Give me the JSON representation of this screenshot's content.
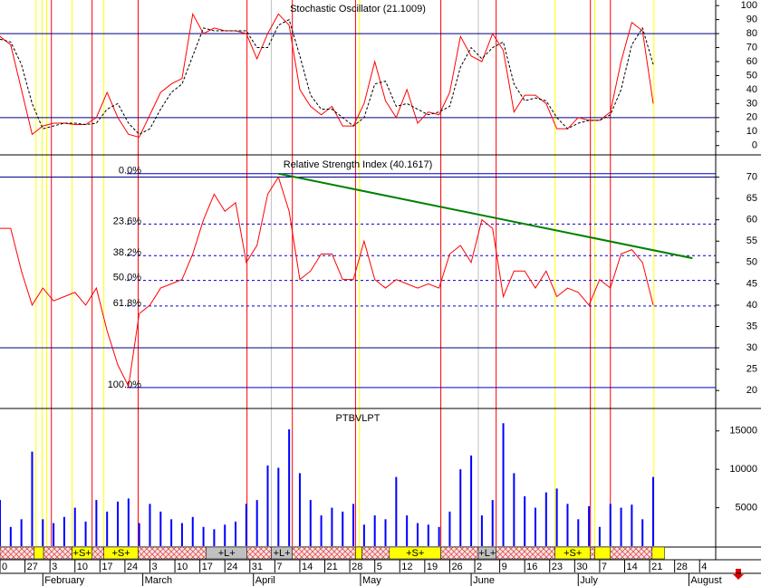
{
  "chart_data": [
    {
      "type": "line",
      "title": "Stochastic Oscillator (21.1009)",
      "x": [
        0,
        3,
        6,
        9,
        12,
        15,
        18,
        21,
        24,
        27,
        30,
        33,
        36,
        39,
        42,
        45,
        48,
        51,
        54,
        57,
        60,
        63,
        66,
        69,
        72,
        75,
        78,
        81,
        84,
        87,
        90,
        93,
        96,
        99,
        102,
        105,
        108,
        111,
        114,
        117,
        120,
        123,
        126,
        129,
        132,
        135,
        138,
        141,
        144,
        147,
        150,
        153,
        156,
        159,
        162,
        165,
        168,
        171,
        174,
        177,
        180,
        183
      ],
      "series": [
        {
          "color": "#ff0000",
          "values": [
            78,
            72,
            40,
            8,
            14,
            16,
            16,
            15,
            15,
            20,
            38,
            20,
            8,
            6,
            22,
            38,
            44,
            48,
            94,
            80,
            84,
            82,
            82,
            80,
            62,
            80,
            94,
            86,
            40,
            28,
            22,
            28,
            14,
            14,
            30,
            60,
            32,
            20,
            40,
            16,
            24,
            22,
            38,
            78,
            64,
            60,
            80,
            68,
            24,
            36,
            36,
            30,
            12,
            12,
            20,
            18,
            18,
            24,
            60,
            88,
            82,
            30
          ]
        },
        {
          "color": "#000000",
          "dashed": true,
          "values": [
            76,
            74,
            58,
            30,
            12,
            14,
            16,
            16,
            15,
            16,
            26,
            30,
            16,
            8,
            12,
            26,
            38,
            44,
            64,
            84,
            82,
            82,
            82,
            82,
            70,
            70,
            86,
            90,
            64,
            36,
            26,
            26,
            20,
            14,
            20,
            44,
            46,
            28,
            30,
            26,
            22,
            24,
            28,
            56,
            70,
            62,
            70,
            74,
            44,
            32,
            34,
            32,
            20,
            12,
            16,
            18,
            18,
            22,
            40,
            72,
            84,
            58
          ]
        }
      ],
      "ylim": [
        -6,
        104
      ],
      "yticks": [
        0,
        10,
        20,
        30,
        40,
        50,
        60,
        70,
        80,
        90,
        100
      ],
      "ref_lines": [
        20,
        80
      ]
    },
    {
      "type": "line",
      "title": "Relative Strength Index (40.1617)",
      "x": [
        0,
        3,
        6,
        9,
        12,
        15,
        18,
        21,
        24,
        27,
        30,
        33,
        36,
        39,
        42,
        45,
        48,
        51,
        54,
        57,
        60,
        63,
        66,
        69,
        72,
        75,
        78,
        81,
        84,
        87,
        90,
        93,
        96,
        99,
        102,
        105,
        108,
        111,
        114,
        117,
        120,
        123,
        126,
        129,
        132,
        135,
        138,
        141,
        144,
        147,
        150,
        153,
        156,
        159,
        162,
        165,
        168,
        171,
        174,
        177,
        180,
        183
      ],
      "series": [
        {
          "color": "#ff0000",
          "values": [
            58,
            58,
            48,
            40,
            44,
            41,
            42,
            43,
            40,
            44,
            34,
            26,
            21,
            38,
            40,
            44,
            45,
            46,
            52,
            60,
            66,
            62,
            64,
            50,
            54,
            66,
            70,
            62,
            46,
            48,
            52,
            52,
            46,
            46,
            55,
            46,
            44,
            46,
            45,
            44,
            45,
            44,
            52,
            54,
            50,
            60,
            58,
            42,
            48,
            48,
            44,
            48,
            42,
            44,
            43,
            40,
            46,
            44,
            52,
            53,
            50,
            40
          ]
        }
      ],
      "ylim": [
        16,
        75
      ],
      "yticks": [
        20,
        25,
        30,
        35,
        40,
        45,
        50,
        55,
        60,
        65,
        70
      ],
      "ref_lines": [
        30,
        70
      ],
      "fib_levels": [
        {
          "label": "0.0%",
          "value": 70.8
        },
        {
          "label": "23.6%",
          "value": 59
        },
        {
          "label": "38.2%",
          "value": 51.6
        },
        {
          "label": "50.0%",
          "value": 45.8
        },
        {
          "label": "61.8%",
          "value": 39.8
        },
        {
          "label": "100.0%",
          "value": 20.7
        }
      ],
      "trend_line": {
        "color": "#008000",
        "x": [
          78,
          194
        ],
        "values": [
          70.8,
          51
        ]
      }
    },
    {
      "type": "bar",
      "title": "PTBVLPT",
      "color": "#0000ff",
      "x": [
        0,
        3,
        6,
        9,
        12,
        15,
        18,
        21,
        24,
        27,
        30,
        33,
        36,
        39,
        42,
        45,
        48,
        51,
        54,
        57,
        60,
        63,
        66,
        69,
        72,
        75,
        78,
        81,
        84,
        87,
        90,
        93,
        96,
        99,
        102,
        105,
        108,
        111,
        114,
        117,
        120,
        123,
        126,
        129,
        132,
        135,
        138,
        141,
        144,
        147,
        150,
        153,
        156,
        159,
        162,
        165,
        168,
        171,
        174,
        177,
        180,
        183
      ],
      "values": [
        6000,
        2500,
        3500,
        12300,
        3500,
        3000,
        3800,
        5000,
        3200,
        6000,
        4500,
        5800,
        6200,
        3000,
        5500,
        4500,
        3500,
        3000,
        3800,
        2500,
        2200,
        2800,
        3200,
        5500,
        6000,
        10500,
        10200,
        15200,
        9500,
        6000,
        4000,
        5000,
        4500,
        5500,
        2800,
        4000,
        3500,
        9000,
        4000,
        3000,
        2800,
        2500,
        4500,
        10000,
        11800,
        4000,
        6000,
        16000,
        9500,
        6500,
        5000,
        7000,
        7500,
        5500,
        3500,
        5200,
        2500,
        5500,
        5000,
        5400,
        3500,
        9000
      ],
      "ylim": [
        0,
        17800
      ],
      "yticks": [
        5000,
        10000,
        15000
      ]
    }
  ],
  "xlim": [
    0,
    200
  ],
  "xticks": [
    {
      "value": 0,
      "label": "0"
    },
    {
      "value": 7,
      "label": "27"
    },
    {
      "value": 14,
      "label": "3"
    },
    {
      "value": 21,
      "label": "10"
    },
    {
      "value": 28,
      "label": "17"
    },
    {
      "value": 35,
      "label": "24"
    },
    {
      "value": 42,
      "label": "3"
    },
    {
      "value": 49,
      "label": "10"
    },
    {
      "value": 56,
      "label": "17"
    },
    {
      "value": 63,
      "label": "24"
    },
    {
      "value": 70,
      "label": "31"
    },
    {
      "value": 77,
      "label": "7"
    },
    {
      "value": 84,
      "label": "14"
    },
    {
      "value": 91,
      "label": "21"
    },
    {
      "value": 98,
      "label": "28"
    },
    {
      "value": 105,
      "label": "5"
    },
    {
      "value": 112,
      "label": "12"
    },
    {
      "value": 119,
      "label": "19"
    },
    {
      "value": 126,
      "label": "26"
    },
    {
      "value": 133,
      "label": "2"
    },
    {
      "value": 140,
      "label": "9"
    },
    {
      "value": 147,
      "label": "16"
    },
    {
      "value": 154,
      "label": "23"
    },
    {
      "value": 161,
      "label": "30"
    },
    {
      "value": 168,
      "label": "7"
    },
    {
      "value": 175,
      "label": "14"
    },
    {
      "value": 182,
      "label": "21"
    },
    {
      "value": 189,
      "label": "28"
    },
    {
      "value": 196,
      "label": "4"
    }
  ],
  "months": [
    {
      "value": 12,
      "label": "February"
    },
    {
      "value": 40,
      "label": "March"
    },
    {
      "value": 71,
      "label": "April"
    },
    {
      "value": 101,
      "label": "May"
    },
    {
      "value": 132,
      "label": "June"
    },
    {
      "value": 162,
      "label": "July"
    },
    {
      "value": 193,
      "label": "August"
    }
  ],
  "signal_lines": [
    {
      "value": 10.1,
      "color": "#ffff00"
    },
    {
      "value": 11.8,
      "color": "#ffff00"
    },
    {
      "value": 13.1,
      "color": "#ffff00"
    },
    {
      "value": 14.4,
      "color": "#ff0000"
    },
    {
      "value": 20.2,
      "color": "#ffff00"
    },
    {
      "value": 25.8,
      "color": "#ff0000"
    },
    {
      "value": 29.1,
      "color": "#ffff00"
    },
    {
      "value": 38.7,
      "color": "#ff0000"
    },
    {
      "value": 69.2,
      "color": "#ff0000"
    },
    {
      "value": 76,
      "color": "#c0c0c0"
    },
    {
      "value": 81.9,
      "color": "#ff0000"
    },
    {
      "value": 99.6,
      "color": "#ff0000"
    },
    {
      "value": 100.7,
      "color": "#ffff00"
    },
    {
      "value": 123.5,
      "color": "#ff0000"
    },
    {
      "value": 134,
      "color": "#c0c0c0"
    },
    {
      "value": 139,
      "color": "#ff0000"
    },
    {
      "value": 155.5,
      "color": "#ffff00"
    },
    {
      "value": 165.4,
      "color": "#ff0000"
    },
    {
      "value": 166.6,
      "color": "#ffff00"
    },
    {
      "value": 171,
      "color": "#ff0000"
    },
    {
      "value": 183.2,
      "color": "#ffff00"
    }
  ],
  "signal_bar": [
    {
      "start": 0,
      "end": 9.6,
      "kind": "hatch"
    },
    {
      "start": 9.6,
      "end": 12.2,
      "kind": "yellow"
    },
    {
      "start": 12.2,
      "end": 20.2,
      "kind": "hatch"
    },
    {
      "start": 20.2,
      "end": 25.8,
      "kind": "yellow",
      "label": "+S+"
    },
    {
      "start": 25.8,
      "end": 29.1,
      "kind": "hatch"
    },
    {
      "start": 29.1,
      "end": 38.7,
      "kind": "yellow",
      "label": "+S+"
    },
    {
      "start": 38.7,
      "end": 57.8,
      "kind": "hatch"
    },
    {
      "start": 57.8,
      "end": 69.2,
      "kind": "gray",
      "label": "+L+"
    },
    {
      "start": 69.2,
      "end": 76,
      "kind": "hatch"
    },
    {
      "start": 76,
      "end": 81.9,
      "kind": "gray",
      "label": "+L+"
    },
    {
      "start": 81.9,
      "end": 99.6,
      "kind": "hatch"
    },
    {
      "start": 99.6,
      "end": 101.4,
      "kind": "yellow"
    },
    {
      "start": 101.4,
      "end": 109.1,
      "kind": "hatch"
    },
    {
      "start": 109.1,
      "end": 123.5,
      "kind": "yellow",
      "label": "+S+"
    },
    {
      "start": 123.5,
      "end": 134,
      "kind": "hatch"
    },
    {
      "start": 134,
      "end": 139,
      "kind": "gray",
      "label": "+L+"
    },
    {
      "start": 139,
      "end": 155.5,
      "kind": "hatch"
    },
    {
      "start": 155.5,
      "end": 165.4,
      "kind": "yellow",
      "label": "+S+"
    },
    {
      "start": 165.4,
      "end": 166.6,
      "kind": "hatch"
    },
    {
      "start": 166.6,
      "end": 171,
      "kind": "yellow"
    },
    {
      "start": 171,
      "end": 182.7,
      "kind": "hatch"
    },
    {
      "start": 182.7,
      "end": 186.2,
      "kind": "yellow"
    }
  ]
}
